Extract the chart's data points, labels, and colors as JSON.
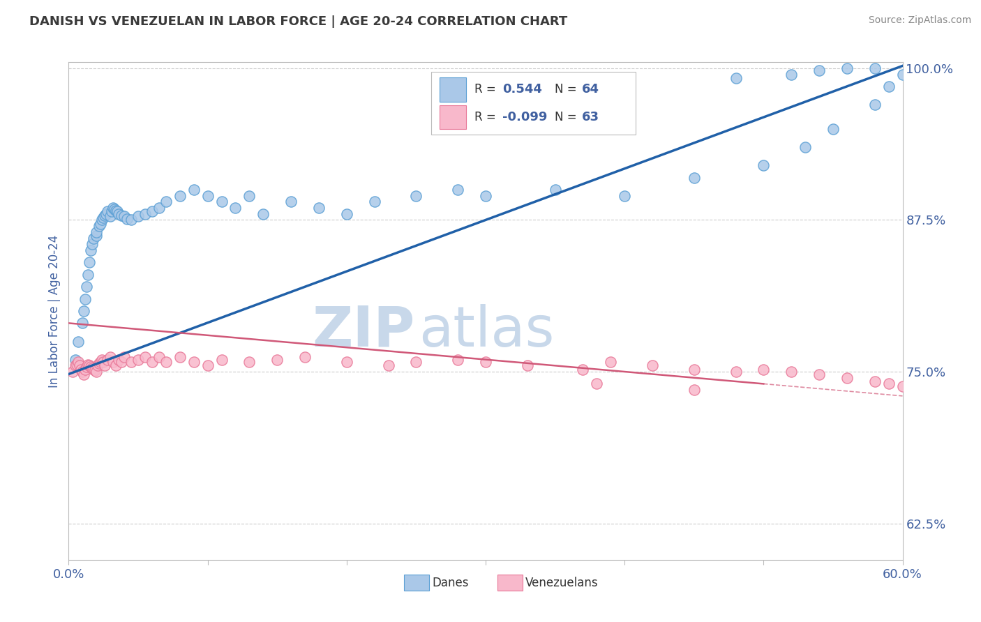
{
  "title": "DANISH VS VENEZUELAN IN LABOR FORCE | AGE 20-24 CORRELATION CHART",
  "source_text": "Source: ZipAtlas.com",
  "ylabel": "In Labor Force | Age 20-24",
  "xlim": [
    0.0,
    0.6
  ],
  "ylim": [
    0.595,
    1.005
  ],
  "xticks": [
    0.0,
    0.1,
    0.2,
    0.3,
    0.4,
    0.5,
    0.6
  ],
  "xticklabels": [
    "0.0%",
    "",
    "",
    "",
    "",
    "",
    "60.0%"
  ],
  "ytick_right_vals": [
    1.0,
    0.875,
    0.75,
    0.625
  ],
  "ytick_right_labels": [
    "100.0%",
    "87.5%",
    "75.0%",
    "62.5%"
  ],
  "legend_R_danes": "0.544",
  "legend_N_danes": "64",
  "legend_R_venezuelans": "-0.099",
  "legend_N_venezuelans": "63",
  "danes_color_fill": "#aac8e8",
  "danes_color_edge": "#5a9fd4",
  "venezuelans_color_fill": "#f8b8cb",
  "venezuelans_color_edge": "#e87898",
  "trend_danes_color": "#2060a8",
  "trend_venezuelans_color": "#d05878",
  "watermark_zip_color": "#c8d8ea",
  "watermark_atlas_color": "#c8d8ea",
  "background_color": "#ffffff",
  "grid_color": "#cccccc",
  "title_color": "#3a3a3a",
  "axis_label_color": "#4060a0",
  "tick_label_color": "#4060a0",
  "legend_R_color": "#4060a0",
  "legend_N_color": "#4060a0",
  "danes_x": [
    0.005,
    0.007,
    0.01,
    0.011,
    0.012,
    0.013,
    0.014,
    0.015,
    0.016,
    0.017,
    0.018,
    0.02,
    0.02,
    0.022,
    0.023,
    0.024,
    0.025,
    0.026,
    0.027,
    0.028,
    0.03,
    0.031,
    0.032,
    0.033,
    0.034,
    0.035,
    0.036,
    0.038,
    0.04,
    0.042,
    0.045,
    0.05,
    0.055,
    0.06,
    0.065,
    0.07,
    0.08,
    0.09,
    0.1,
    0.11,
    0.12,
    0.13,
    0.14,
    0.16,
    0.18,
    0.2,
    0.22,
    0.25,
    0.28,
    0.3,
    0.35,
    0.4,
    0.45,
    0.5,
    0.53,
    0.55,
    0.58,
    0.59,
    0.6,
    0.58,
    0.56,
    0.54,
    0.52,
    0.48
  ],
  "danes_y": [
    0.76,
    0.775,
    0.79,
    0.8,
    0.81,
    0.82,
    0.83,
    0.84,
    0.85,
    0.855,
    0.86,
    0.862,
    0.865,
    0.87,
    0.872,
    0.875,
    0.877,
    0.879,
    0.88,
    0.882,
    0.878,
    0.882,
    0.885,
    0.884,
    0.883,
    0.882,
    0.88,
    0.879,
    0.878,
    0.876,
    0.875,
    0.878,
    0.88,
    0.882,
    0.885,
    0.89,
    0.895,
    0.9,
    0.895,
    0.89,
    0.885,
    0.895,
    0.88,
    0.89,
    0.885,
    0.88,
    0.89,
    0.895,
    0.9,
    0.895,
    0.9,
    0.895,
    0.91,
    0.92,
    0.935,
    0.95,
    0.97,
    0.985,
    0.995,
    1.0,
    1.0,
    0.998,
    0.995,
    0.992
  ],
  "venezuelans_x": [
    0.003,
    0.005,
    0.006,
    0.007,
    0.008,
    0.009,
    0.01,
    0.011,
    0.012,
    0.013,
    0.014,
    0.015,
    0.016,
    0.017,
    0.018,
    0.019,
    0.02,
    0.021,
    0.022,
    0.023,
    0.024,
    0.025,
    0.026,
    0.028,
    0.03,
    0.032,
    0.034,
    0.036,
    0.038,
    0.04,
    0.045,
    0.05,
    0.055,
    0.06,
    0.065,
    0.07,
    0.08,
    0.09,
    0.1,
    0.11,
    0.13,
    0.15,
    0.17,
    0.2,
    0.23,
    0.25,
    0.28,
    0.3,
    0.33,
    0.37,
    0.39,
    0.42,
    0.45,
    0.48,
    0.5,
    0.52,
    0.54,
    0.56,
    0.58,
    0.59,
    0.6,
    0.45,
    0.38
  ],
  "venezuelans_y": [
    0.75,
    0.755,
    0.756,
    0.758,
    0.755,
    0.752,
    0.75,
    0.748,
    0.752,
    0.754,
    0.756,
    0.755,
    0.754,
    0.753,
    0.752,
    0.751,
    0.75,
    0.755,
    0.757,
    0.758,
    0.76,
    0.758,
    0.755,
    0.76,
    0.762,
    0.758,
    0.755,
    0.76,
    0.758,
    0.762,
    0.758,
    0.76,
    0.762,
    0.758,
    0.762,
    0.758,
    0.762,
    0.758,
    0.755,
    0.76,
    0.758,
    0.76,
    0.762,
    0.758,
    0.755,
    0.758,
    0.76,
    0.758,
    0.755,
    0.752,
    0.758,
    0.755,
    0.752,
    0.75,
    0.752,
    0.75,
    0.748,
    0.745,
    0.742,
    0.74,
    0.738,
    0.735,
    0.74
  ],
  "danes_trend_x0": 0.0,
  "danes_trend_y0": 0.748,
  "danes_trend_x1": 0.6,
  "danes_trend_y1": 1.002,
  "ven_trend_x0": 0.0,
  "ven_trend_y0": 0.79,
  "ven_trend_x1": 0.6,
  "ven_trend_y1": 0.73
}
